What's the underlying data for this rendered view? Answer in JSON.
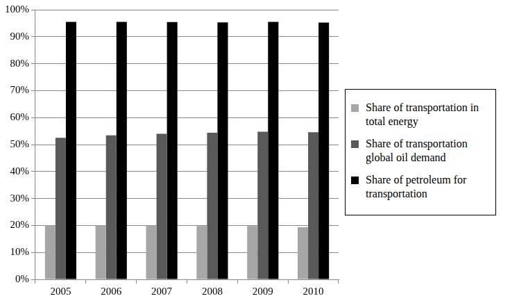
{
  "chart_data": {
    "type": "bar",
    "categories": [
      "2005",
      "2006",
      "2007",
      "2008",
      "2009",
      "2010"
    ],
    "series": [
      {
        "name": "Share of transportation in total energy",
        "color": "#a6a6a6",
        "values": [
          20,
          20,
          20,
          19.8,
          19.8,
          19.3
        ]
      },
      {
        "name": "Share of transportation global oil demand",
        "color": "#595959",
        "values": [
          52.5,
          53.4,
          54,
          54.4,
          54.8,
          54.6
        ]
      },
      {
        "name": "Share of petroleum for transportation",
        "color": "#000000",
        "values": [
          95.5,
          95.5,
          95.4,
          95.3,
          95.5,
          95.2
        ]
      }
    ],
    "ylim": [
      0,
      100
    ],
    "yticks": [
      {
        "value": 0,
        "label": "0%"
      },
      {
        "value": 10,
        "label": "10%"
      },
      {
        "value": 20,
        "label": "20%"
      },
      {
        "value": 30,
        "label": "30%"
      },
      {
        "value": 40,
        "label": "40%"
      },
      {
        "value": 50,
        "label": "50%"
      },
      {
        "value": 60,
        "label": "60%"
      },
      {
        "value": 70,
        "label": "70%"
      },
      {
        "value": 80,
        "label": "80%"
      },
      {
        "value": 90,
        "label": "90%"
      },
      {
        "value": 100,
        "label": "100%"
      }
    ],
    "grid": true,
    "legend": "right"
  }
}
